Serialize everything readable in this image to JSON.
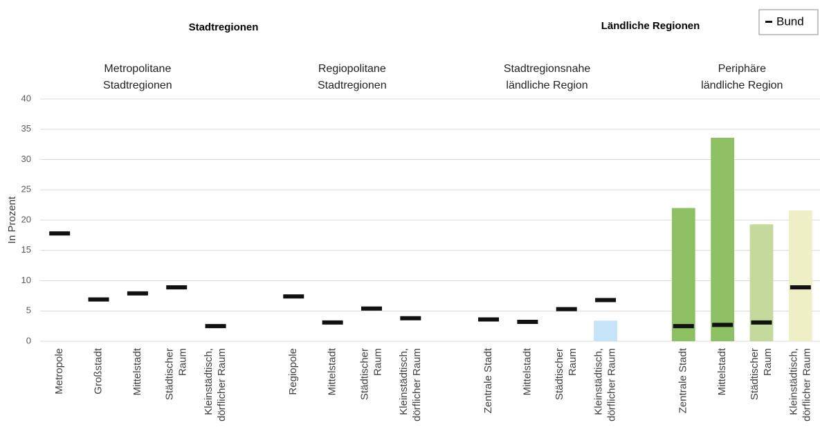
{
  "chart_data": {
    "type": "bar",
    "group_labels": [
      "Stadtregionen",
      "Ländliche Regionen"
    ],
    "subgroup_labels": [
      [
        "Metropolitane",
        "Stadtregionen"
      ],
      [
        "Regiopolitane",
        "Stadtregionen"
      ],
      [
        "Stadtregionsnahe",
        "ländliche Region"
      ],
      [
        "Periphäre",
        "ländliche Region"
      ]
    ],
    "y_label": "In Prozent",
    "categories": [
      [
        "Metropole"
      ],
      [
        "Großstadt"
      ],
      [
        "Mittelstadt"
      ],
      [
        "Städtischer",
        "Raum"
      ],
      [
        "Kleinstädtisch,",
        "dörflicher Raum"
      ],
      null,
      [
        "Regiopole"
      ],
      [
        "Mittelstadt"
      ],
      [
        "Städtischer",
        "Raum"
      ],
      [
        "Kleinstädtisch,",
        "dörflicher Raum"
      ],
      null,
      [
        "Zentrale Stadt"
      ],
      [
        "Mittelstadt"
      ],
      [
        "Städtischer",
        "Raum"
      ],
      [
        "Kleinstädtisch,",
        "dörflicher Raum"
      ],
      null,
      [
        "Zentrale Stadt"
      ],
      [
        "Mittelstadt"
      ],
      [
        "Städtischer",
        "Raum"
      ],
      [
        "Kleinstädtisch,",
        "dörflicher Raum"
      ]
    ],
    "series": [
      {
        "values": [
          null,
          null,
          null,
          null,
          null,
          null,
          null,
          null,
          null,
          null,
          null,
          null,
          null,
          null,
          3.4,
          null,
          22,
          33.6,
          19.3,
          21.6
        ],
        "colors": [
          null,
          null,
          null,
          null,
          null,
          null,
          null,
          null,
          null,
          null,
          null,
          null,
          null,
          null,
          "#c5e4f7",
          null,
          "#8dc063",
          "#8dc063",
          "#c6d99c",
          "#eeefc6"
        ]
      },
      {
        "name": "Bund",
        "color": "#111111",
        "marker": "dash",
        "values": [
          17.8,
          6.9,
          7.9,
          8.9,
          2.5,
          null,
          7.4,
          3.1,
          5.4,
          3.8,
          null,
          3.6,
          3.2,
          5.3,
          6.8,
          null,
          2.5,
          2.7,
          3.1,
          8.9
        ]
      }
    ],
    "ylim": [
      0,
      40
    ],
    "yticks": [
      0,
      5,
      10,
      15,
      20,
      25,
      30,
      35,
      40
    ],
    "grid": true,
    "legend": "top-right"
  }
}
